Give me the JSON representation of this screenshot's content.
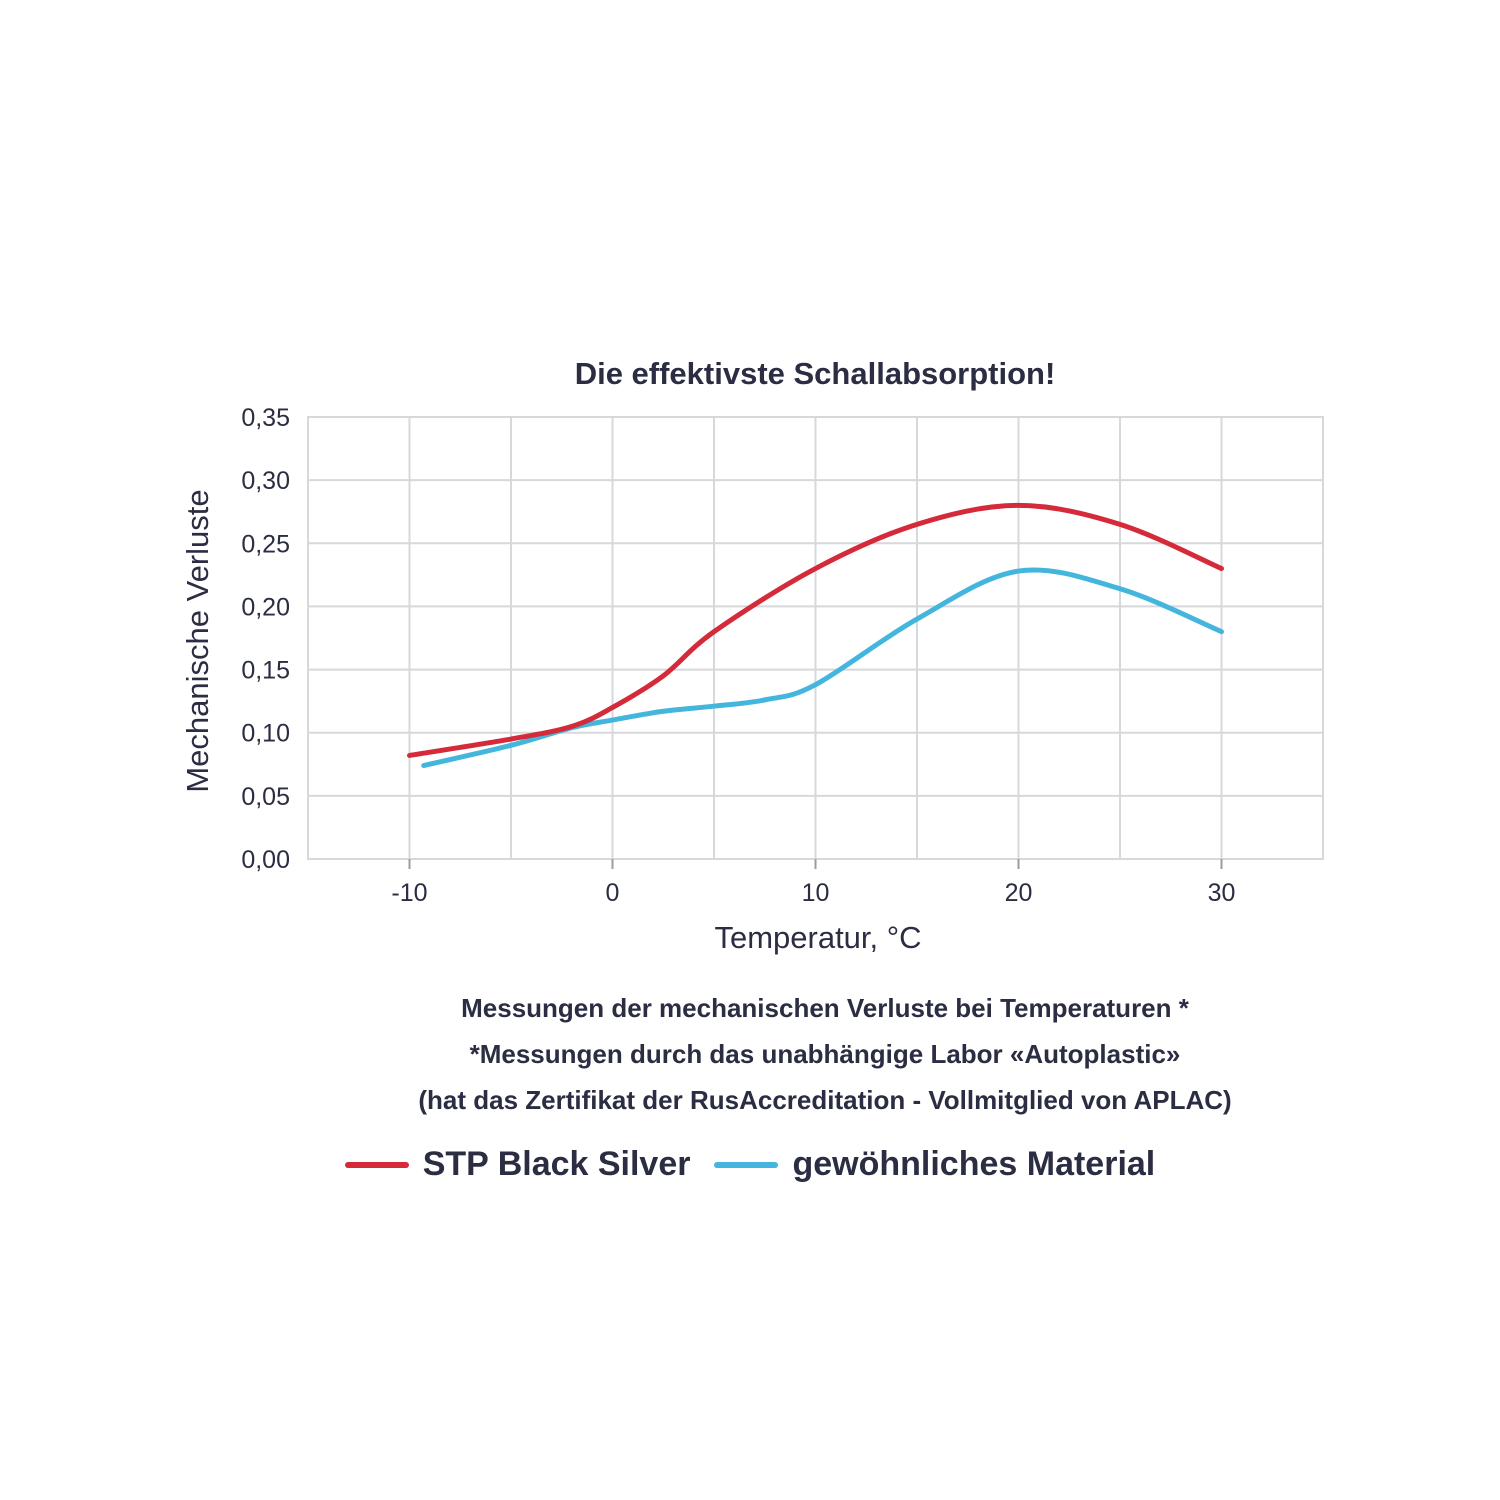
{
  "chart_data": {
    "type": "line",
    "title": "Die effektivste Schallabsorption!",
    "xlabel": "Temperatur, °C",
    "ylabel": "Mechanische Verluste",
    "xlim": [
      -15,
      35
    ],
    "ylim": [
      0,
      0.35
    ],
    "x_ticks": [
      "-10",
      "0",
      "10",
      "20",
      "30"
    ],
    "x_tick_values": [
      -10,
      0,
      10,
      20,
      30
    ],
    "y_ticks": [
      "0,00",
      "0,05",
      "0,10",
      "0,15",
      "0,20",
      "0,25",
      "0,30",
      "0,35"
    ],
    "y_tick_values": [
      0,
      0.05,
      0.1,
      0.15,
      0.2,
      0.25,
      0.3,
      0.35
    ],
    "grid": true,
    "legend_position": "bottom",
    "series": [
      {
        "name": "STP Black Silver",
        "color": "#d42a3a",
        "x": [
          -10,
          -5,
          -2,
          0,
          2.5,
          5,
          10,
          15,
          20,
          25,
          30
        ],
        "values": [
          0.082,
          0.095,
          0.105,
          0.12,
          0.145,
          0.18,
          0.23,
          0.265,
          0.28,
          0.265,
          0.23
        ]
      },
      {
        "name": "gewöhnliches Material",
        "color": "#44b6dd",
        "x": [
          -9.3,
          -5,
          -2,
          0,
          2.5,
          5,
          7.5,
          10,
          15,
          20,
          25,
          30
        ],
        "values": [
          0.074,
          0.09,
          0.104,
          0.11,
          0.117,
          0.121,
          0.126,
          0.138,
          0.19,
          0.228,
          0.214,
          0.18
        ]
      }
    ]
  },
  "notes": {
    "line1": "Messungen der mechanischen Verluste bei Temperaturen *",
    "line2": "*Messungen durch das unabhängige Labor «Autoplastic»",
    "line3": "(hat das Zertifikat der RusAccreditation - Vollmitglied von APLAC)"
  },
  "legend": {
    "items": [
      {
        "label": "STP Black Silver",
        "color": "#d42a3a"
      },
      {
        "label": "gewöhnliches Material",
        "color": "#44b6dd"
      }
    ]
  }
}
